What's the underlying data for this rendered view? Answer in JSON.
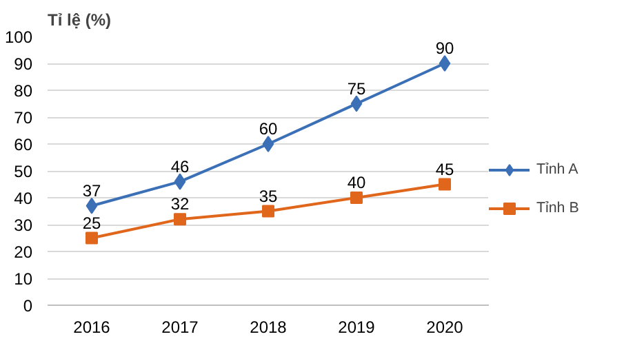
{
  "chart_data": {
    "type": "line",
    "ylabel": "Tỉ lệ (%)",
    "categories": [
      "2016",
      "2017",
      "2018",
      "2019",
      "2020"
    ],
    "series": [
      {
        "name": "Tỉnh A",
        "color": "#3b6fb6",
        "values": [
          37,
          46,
          60,
          75,
          90
        ],
        "marker": "diamond"
      },
      {
        "name": "Tỉnh B",
        "color": "#e0661c",
        "values": [
          25,
          32,
          35,
          40,
          45
        ],
        "marker": "square"
      }
    ],
    "ylim": [
      0,
      100
    ],
    "yticks": [
      0,
      10,
      20,
      30,
      40,
      50,
      60,
      70,
      80,
      90,
      100
    ],
    "grid": "y",
    "legend": "right",
    "data_labels": true,
    "line_style": "solid"
  }
}
